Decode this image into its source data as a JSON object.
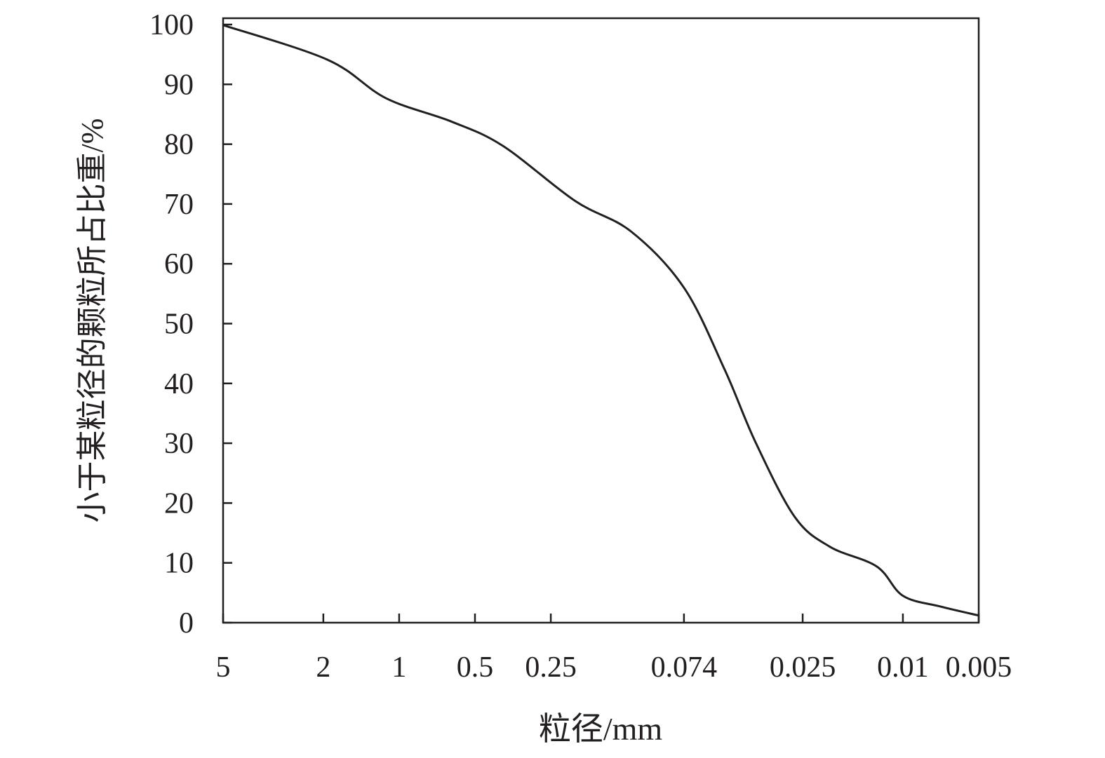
{
  "chart_data": {
    "type": "line",
    "title": "",
    "xlabel": "粒径/mm",
    "ylabel": "小于某粒径的颗粒所占比重/%",
    "x_scale": "log",
    "x_reversed": true,
    "xlim": [
      5,
      0.005
    ],
    "ylim": [
      0,
      100
    ],
    "grid": false,
    "x_ticks": [
      5,
      2,
      1,
      0.5,
      0.25,
      0.074,
      0.025,
      0.01,
      0.005
    ],
    "x_tick_labels": [
      "5",
      "2",
      "1",
      "0.5",
      "0.25",
      "0.074",
      "0.025",
      "0.01",
      "0.005"
    ],
    "y_ticks": [
      0,
      10,
      20,
      30,
      40,
      50,
      60,
      70,
      80,
      90,
      100
    ],
    "y_tick_labels": [
      "0",
      "10",
      "20",
      "30",
      "40",
      "50",
      "60",
      "70",
      "80",
      "90",
      "100"
    ],
    "line_color": "#231f20",
    "series": [
      {
        "x": [
          5,
          1.92,
          1.13,
          0.622,
          0.387,
          0.2,
          0.12,
          0.074,
          0.051,
          0.0385,
          0.0269,
          0.0195,
          0.0127,
          0.01,
          0.0071,
          0.005
        ],
        "y": [
          99.9,
          94.1,
          87.7,
          83.8,
          79.7,
          70.5,
          65.4,
          56.0,
          42.3,
          30.2,
          17.7,
          12.7,
          9.4,
          4.5,
          2.7,
          1.2
        ]
      }
    ]
  }
}
